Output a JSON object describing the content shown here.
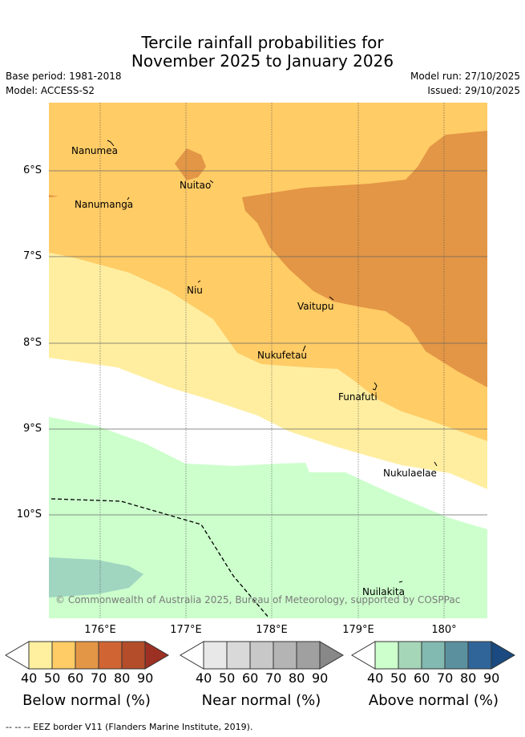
{
  "title": {
    "line1": "Tercile rainfall probabilities for",
    "line2": "November 2025 to January 2026"
  },
  "meta": {
    "base_period": "Base period: 1981-2018",
    "model": "Model: ACCESS-S2",
    "model_run": "Model run: 27/10/2025",
    "issued": "Issued: 29/10/2025"
  },
  "axes": {
    "lon_ticks": [
      "176°E",
      "177°E",
      "178°E",
      "179°E",
      "180°"
    ],
    "lat_ticks": [
      "6°S",
      "7°S",
      "8°S",
      "9°S",
      "10°S"
    ]
  },
  "places": {
    "nanumea": "Nanumea",
    "nuitao": "Nuitao",
    "nanumanga": "Nanumanga",
    "niu": "Niu",
    "vaitupu": "Vaitupu",
    "nukufetau": "Nukufetau",
    "funafuti": "Funafuti",
    "nukulaelae": "Nukulaelae",
    "nuilakita": "Nuilakita"
  },
  "copyright": "© Commonwealth of Australia 2025, Bureau of Meteorology, supported by COSPPac",
  "colorbars": {
    "ticks": [
      "40",
      "50",
      "60",
      "70",
      "80",
      "90"
    ],
    "below": {
      "title": "Below normal (%)",
      "colors": [
        "#ffffff",
        "#fff0a0",
        "#ffcc66",
        "#e39645",
        "#d06533",
        "#b34d2a",
        "#9c3123"
      ]
    },
    "near": {
      "title": "Near normal (%)",
      "colors": [
        "#ffffff",
        "#e8e8e8",
        "#d9d9d9",
        "#c8c8c8",
        "#b4b4b4",
        "#a0a0a0",
        "#888888"
      ]
    },
    "above": {
      "title": "Above normal (%)",
      "colors": [
        "#ffffff",
        "#ccffcc",
        "#a5d6b8",
        "#82b9b0",
        "#5b919e",
        "#30659a",
        "#1a4a80"
      ]
    }
  },
  "footnote": "--  --  -- EEZ border V11 (Flanders Marine Institute, 2019)."
}
